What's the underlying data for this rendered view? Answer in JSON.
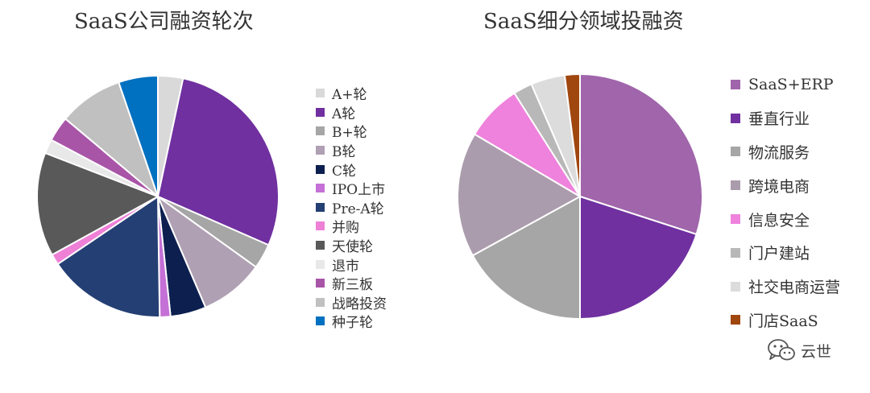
{
  "watermark": {
    "text": "云世",
    "icon": "wechat-icon"
  },
  "chart_data": [
    {
      "type": "pie",
      "title": "SaaS公司融资轮次",
      "legend_position": "right",
      "start_angle_deg": 0,
      "direction": "clockwise",
      "slices": [
        {
          "label": "A+轮",
          "value": 3.5,
          "color": "#d9d9d9"
        },
        {
          "label": "A轮",
          "value": 29.5,
          "color": "#7030a0"
        },
        {
          "label": "B+轮",
          "value": 3.5,
          "color": "#a6a6a6"
        },
        {
          "label": "B轮",
          "value": 9.0,
          "color": "#b0a0b4"
        },
        {
          "label": "C轮",
          "value": 5.0,
          "color": "#0c1f4f"
        },
        {
          "label": "IPO上市",
          "value": 1.5,
          "color": "#c470d6"
        },
        {
          "label": "Pre-A轮",
          "value": 16.5,
          "color": "#243f73"
        },
        {
          "label": "并购",
          "value": 1.5,
          "color": "#ee80d6"
        },
        {
          "label": "天使轮",
          "value": 14.5,
          "color": "#595959"
        },
        {
          "label": "退市",
          "value": 2.0,
          "color": "#e8e8e8"
        },
        {
          "label": "新三板",
          "value": 3.5,
          "color": "#a855a8"
        },
        {
          "label": "战略投资",
          "value": 9.0,
          "color": "#c0c0c0"
        },
        {
          "label": "种子轮",
          "value": 5.5,
          "color": "#0070c0"
        }
      ]
    },
    {
      "type": "pie",
      "title": "SaaS细分领域投融资",
      "legend_position": "right",
      "start_angle_deg": 0,
      "direction": "clockwise",
      "slices": [
        {
          "label": "SaaS+ERP",
          "value": 30.0,
          "color": "#a065ab"
        },
        {
          "label": "垂直行业",
          "value": 20.0,
          "color": "#7030a0"
        },
        {
          "label": "物流服务",
          "value": 17.0,
          "color": "#a6a6a6"
        },
        {
          "label": "跨境电商",
          "value": 16.5,
          "color": "#ab9cad"
        },
        {
          "label": "信息安全",
          "value": 7.5,
          "color": "#ee82dc"
        },
        {
          "label": "门户建站",
          "value": 2.5,
          "color": "#b8b8b8"
        },
        {
          "label": "社交电商运营",
          "value": 4.5,
          "color": "#dcdcdc"
        },
        {
          "label": "门店SaaS",
          "value": 2.0,
          "color": "#a0460f"
        }
      ]
    }
  ]
}
